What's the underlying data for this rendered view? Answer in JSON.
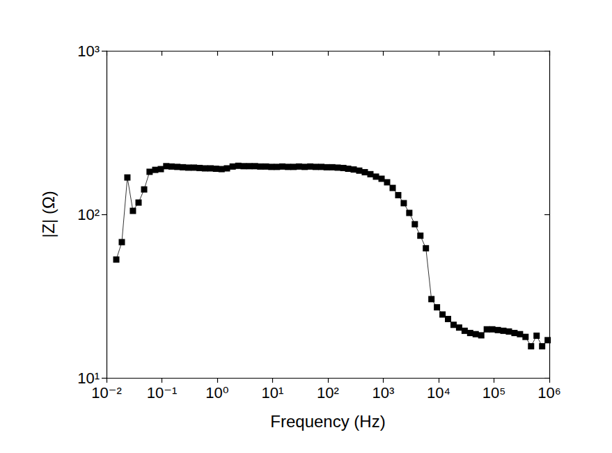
{
  "chart_data": {
    "type": "line",
    "x_label": "Frequency (Hz)",
    "y_label": "|Z| (Ω)",
    "log": true,
    "grid": false,
    "color": "#000000",
    "marker": "square",
    "line_style": "solid",
    "xlim": [
      0.01,
      1000000
    ],
    "ylim": [
      10,
      1000
    ],
    "xticks": [
      {
        "value": 0.01,
        "label": "10⁻²"
      },
      {
        "value": 0.1,
        "label": "10⁻¹"
      },
      {
        "value": 1,
        "label": "10⁰"
      },
      {
        "value": 10,
        "label": "10¹"
      },
      {
        "value": 100,
        "label": "10²"
      },
      {
        "value": 1000,
        "label": "10³"
      },
      {
        "value": 10000,
        "label": "10⁴"
      },
      {
        "value": 100000,
        "label": "10⁵"
      },
      {
        "value": 1000000,
        "label": "10⁶"
      }
    ],
    "yticks": [
      {
        "value": 10,
        "label": "10¹"
      },
      {
        "value": 100,
        "label": "10²"
      },
      {
        "value": 1000,
        "label": "10³"
      }
    ],
    "x": [
      0.015,
      0.0189,
      0.0238,
      0.03,
      0.0379,
      0.0478,
      0.06,
      0.0759,
      0.0957,
      0.12,
      0.15,
      0.19,
      0.24,
      0.3,
      0.38,
      0.48,
      0.6,
      0.76,
      0.95,
      1.2,
      1.5,
      1.9,
      2.4,
      3.0,
      3.8,
      4.8,
      6.0,
      7.6,
      9.5,
      12,
      15,
      19,
      24,
      30,
      38,
      48,
      60,
      76,
      95,
      120,
      150,
      190,
      232,
      292,
      368,
      464,
      585,
      738,
      931,
      1172,
      1479,
      1862,
      2344,
      2951,
      3715,
      4677,
      5888,
      7413,
      9333,
      11750,
      14790,
      18620,
      23440,
      29510,
      37150,
      46770,
      58880,
      74130,
      93330,
      117500,
      147900,
      186200,
      234400,
      295100,
      371500,
      467700,
      588800,
      741300,
      933300
    ],
    "values": [
      52.9,
      67.6,
      168,
      105,
      118,
      142,
      182,
      187,
      189,
      197,
      196,
      195,
      194,
      193,
      193,
      192,
      191,
      191,
      190,
      189,
      191,
      196,
      198,
      197,
      197,
      197,
      196,
      196,
      195,
      195,
      196,
      195,
      195,
      196,
      195,
      196,
      195,
      195,
      194,
      194,
      193,
      192,
      190,
      188,
      185,
      181,
      176,
      170,
      165,
      157,
      145,
      131,
      117,
      102,
      87,
      74,
      62,
      30.3,
      27,
      24.4,
      22.9,
      21.1,
      20.3,
      19.4,
      18.8,
      18.5,
      18.2,
      19.8,
      19.8,
      19.6,
      19.4,
      19.2,
      18.8,
      18.5,
      17.8,
      15.6,
      18.1,
      15.6,
      17.0
    ]
  }
}
